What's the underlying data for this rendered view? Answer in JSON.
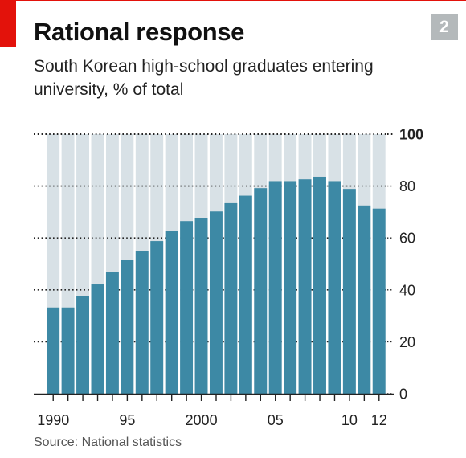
{
  "header": {
    "chart_number": "2",
    "title": "Rational response",
    "subtitle": "South Korean high-school graduates entering university, % of total"
  },
  "footer": {
    "source": "Source: National statistics"
  },
  "colors": {
    "bar": "#3d89a5",
    "bar_background": "#d8e1e6",
    "accent": "#e3120b",
    "gridline": "#222222"
  },
  "chart_data": {
    "type": "bar",
    "title": "Rational response",
    "subtitle": "South Korean high-school graduates entering university, % of total",
    "xlabel": "",
    "ylabel": "",
    "ylim": [
      0,
      100
    ],
    "y_ticks": [
      0,
      20,
      40,
      60,
      80,
      100
    ],
    "y_axis_side": "right",
    "grid": "dotted horizontal",
    "categories": [
      1990,
      1991,
      1992,
      1993,
      1994,
      1995,
      1996,
      1997,
      1998,
      1999,
      2000,
      2001,
      2002,
      2003,
      2004,
      2005,
      2006,
      2007,
      2008,
      2009,
      2010,
      2011,
      2012
    ],
    "values": [
      33.2,
      33.2,
      37.7,
      42.1,
      46.8,
      51.4,
      54.9,
      58.8,
      62.6,
      66.5,
      67.8,
      70.2,
      73.4,
      76.3,
      79.2,
      81.9,
      81.9,
      82.6,
      83.6,
      81.9,
      78.9,
      72.5,
      71.3
    ],
    "x_tick_labels": [
      {
        "at": 1990,
        "label": "1990"
      },
      {
        "at": 1995,
        "label": "95"
      },
      {
        "at": 2000,
        "label": "2000"
      },
      {
        "at": 2005,
        "label": "05"
      },
      {
        "at": 2010,
        "label": "10"
      },
      {
        "at": 2012,
        "label": "12"
      }
    ]
  }
}
